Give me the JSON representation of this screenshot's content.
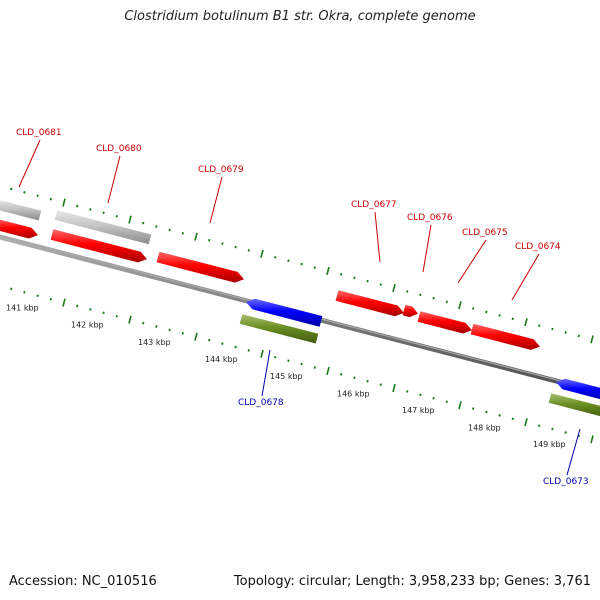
{
  "title": "Clostridium botulinum B1 str. Okra, complete genome",
  "footer": {
    "accession": "Accession: NC_010516",
    "topology": "Topology: circular; Length: 3,958,233 bp; Genes: 3,761"
  },
  "colors": {
    "forward_gene": "#ff0000",
    "reverse_gene": "#0000ff",
    "reverse_rna_band": "#6b8e23",
    "other_feature": "#c0c0c0",
    "backbone": "#808080",
    "tick": "#1a7a1a",
    "forward_label": "#cc0000",
    "reverse_label": "#0000aa"
  },
  "scale_labels": [
    "141 kbp",
    "142 kbp",
    "143 kbp",
    "144 kbp",
    "145 kbp",
    "146 kbp",
    "147 kbp",
    "148 kbp",
    "149 kbp"
  ],
  "forward_genes": [
    "CLD_0681",
    "CLD_0680",
    "CLD_0679",
    "CLD_0677",
    "CLD_0676",
    "CLD_0675",
    "CLD_0674"
  ],
  "reverse_genes": [
    "CLD_0678",
    "CLD_0673"
  ]
}
